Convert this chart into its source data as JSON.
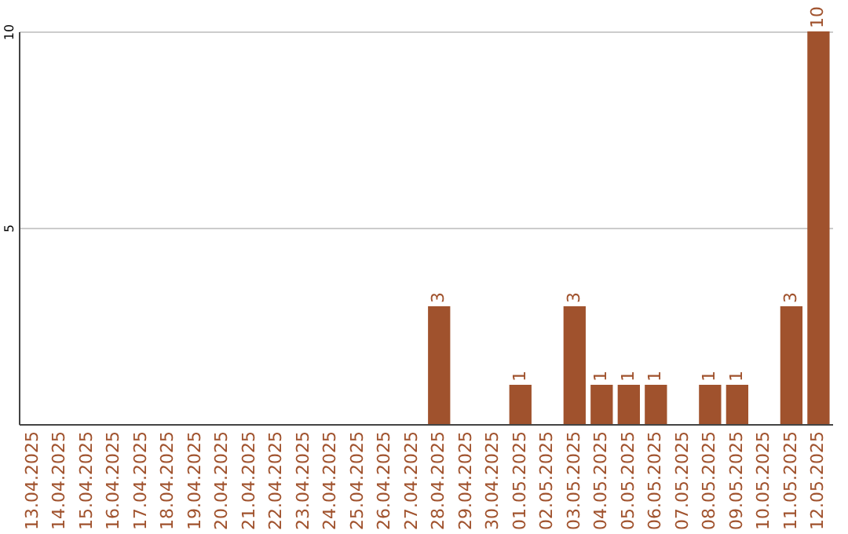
{
  "chart_data": {
    "type": "bar",
    "categories": [
      "13.04.2025",
      "14.04.2025",
      "15.04.2025",
      "16.04.2025",
      "17.04.2025",
      "18.04.2025",
      "19.04.2025",
      "20.04.2025",
      "21.04.2025",
      "22.04.2025",
      "23.04.2025",
      "24.04.2025",
      "25.04.2025",
      "26.04.2025",
      "27.04.2025",
      "28.04.2025",
      "29.04.2025",
      "30.04.2025",
      "01.05.2025",
      "02.05.2025",
      "03.05.2025",
      "04.05.2025",
      "05.05.2025",
      "06.05.2025",
      "07.05.2025",
      "08.05.2025",
      "09.05.2025",
      "10.05.2025",
      "11.05.2025",
      "12.05.2025"
    ],
    "values": [
      0,
      0,
      0,
      0,
      0,
      0,
      0,
      0,
      0,
      0,
      0,
      0,
      0,
      0,
      0,
      3,
      0,
      0,
      1,
      0,
      3,
      1,
      1,
      1,
      0,
      1,
      1,
      0,
      3,
      10
    ],
    "value_labels": [
      null,
      null,
      null,
      null,
      null,
      null,
      null,
      null,
      null,
      null,
      null,
      null,
      null,
      null,
      null,
      "3",
      null,
      null,
      "1",
      null,
      "3",
      "1",
      "1",
      "1",
      null,
      "1",
      "1",
      null,
      "3",
      "10"
    ],
    "color": "#a0522d",
    "ylim": [
      0,
      10
    ],
    "yticks": [
      5,
      10
    ],
    "grid": "y"
  }
}
